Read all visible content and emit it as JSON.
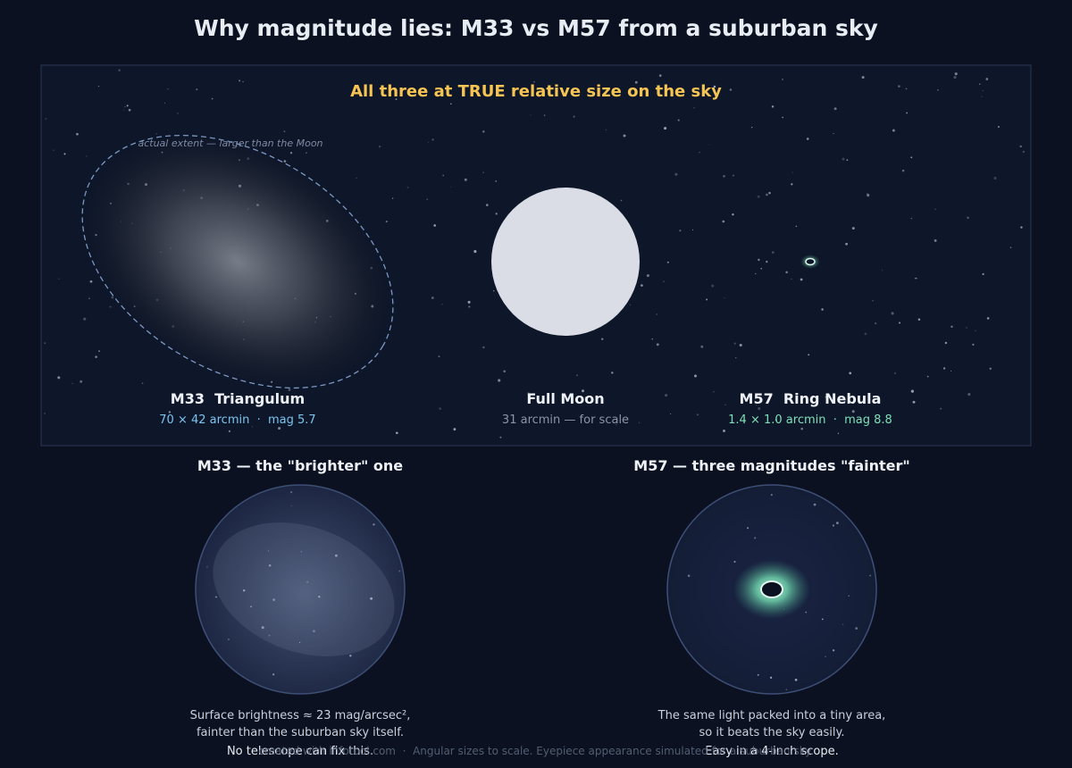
{
  "title": "Why magnitude lies: M33 vs M57 from a suburban sky",
  "panel": {
    "heading": "All three at TRUE relative size on the sky",
    "m33_extent_note": "actual extent — larger than the Moon"
  },
  "objects": {
    "m33": {
      "name": "M33  Triangulum",
      "detail": "70 × 42 arcmin  ·  mag 5.7"
    },
    "moon": {
      "name": "Full Moon",
      "detail": "31 arcmin — for scale"
    },
    "m57": {
      "name": "M57  Ring Nebula",
      "detail": "1.4 × 1.0 arcmin  ·  mag 8.8"
    }
  },
  "eyepieces": {
    "m33": {
      "title": "M33 — the \"brighter\" one",
      "caption": [
        "Surface brightness ≈ 23 mag/arcsec²,",
        "fainter than the suburban sky itself.",
        "No telescope can fix this."
      ]
    },
    "m57": {
      "title": "M57 — three magnitudes \"fainter\"",
      "caption": [
        "The same light packed into a tiny area,",
        "so it beats the sky easily.",
        "Easy in a 4-inch scope."
      ]
    }
  },
  "footer": "created with infotool.com  ·  Angular sizes to scale. Eyepiece appearance simulated for a suburban sky.",
  "colors": {
    "background": "#0b1120",
    "panel": "#0e1629",
    "heading": "#f6c453",
    "m33_detail": "#7cc4ee",
    "m57_detail": "#7ee0b8",
    "moon": "#dadde6",
    "muted": "#8b95a7"
  }
}
